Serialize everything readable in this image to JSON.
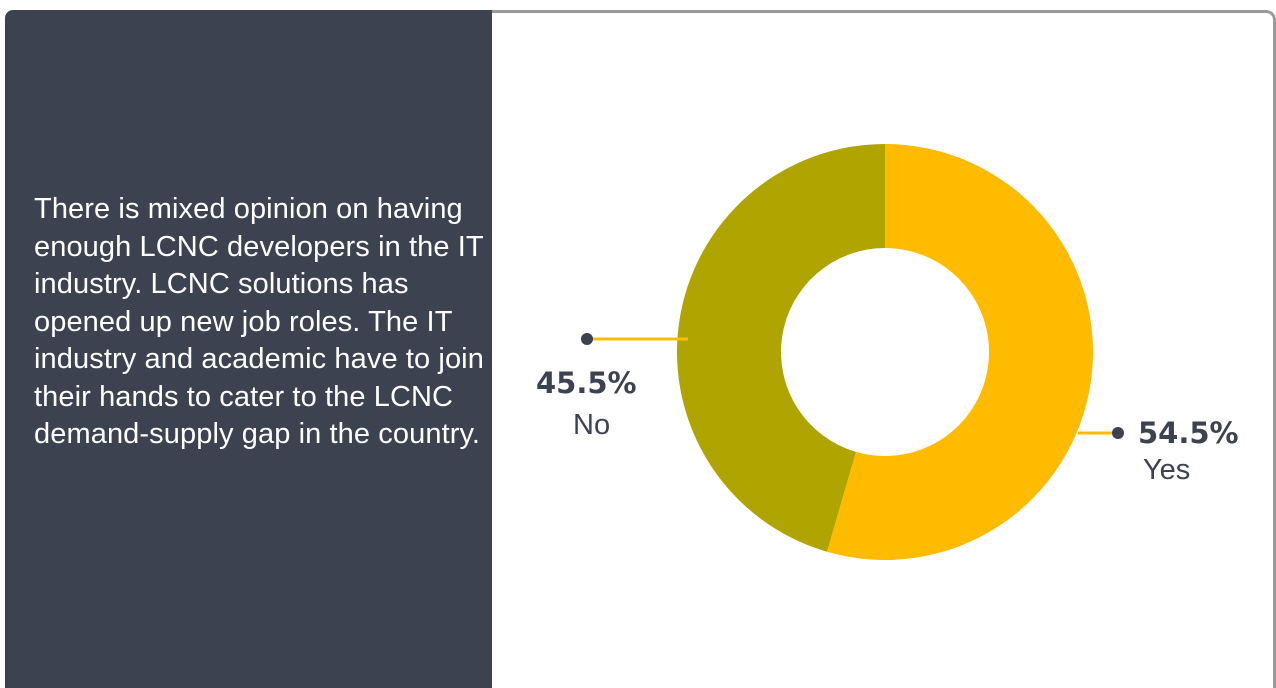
{
  "description": "There is mixed opinion on having enough LCNC developers in the IT industry. LCNC solutions has opened up new job roles. The IT industry and academic have to join their hands to cater to the LCNC demand-supply gap in the country.",
  "colors": {
    "panel": "#3d4250",
    "yes": "#ffbb00",
    "no": "#afa400",
    "leader_dot": "#3d4250",
    "text_dark": "#3d4250"
  },
  "chart_data": {
    "type": "pie",
    "donut": true,
    "categories": [
      "Yes",
      "No"
    ],
    "values": [
      54.5,
      45.5
    ],
    "value_labels": [
      "54.5%",
      "45.5%"
    ],
    "title": "",
    "legend": "none"
  }
}
